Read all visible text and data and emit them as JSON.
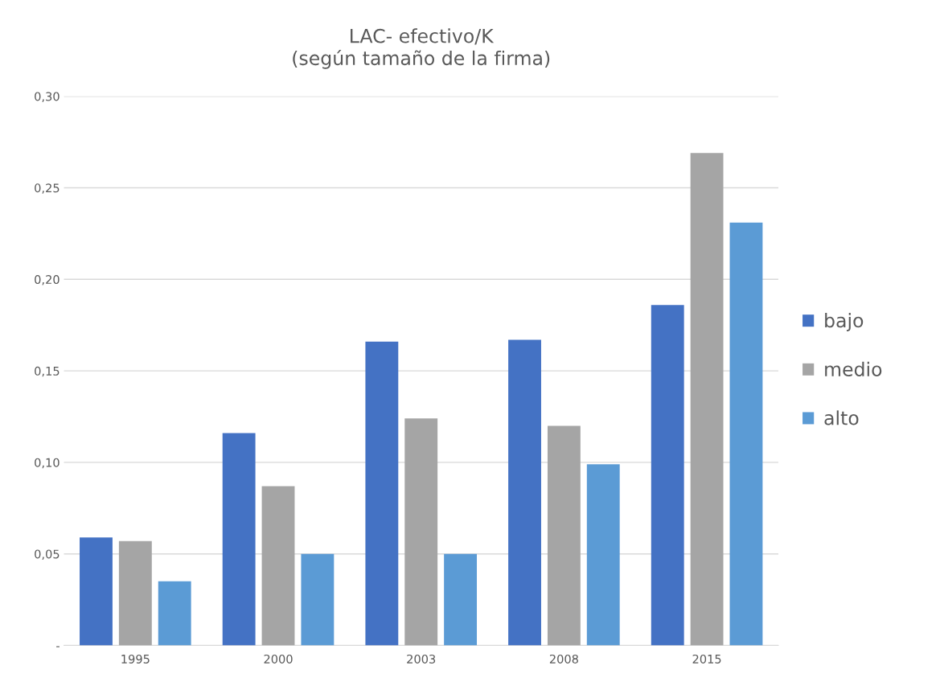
{
  "chart_data": {
    "type": "bar",
    "title": "LAC- efectivo/K\n(según tamaño de la firma)",
    "categories": [
      "1995",
      "2000",
      "2003",
      "2008",
      "2015"
    ],
    "series": [
      {
        "name": "bajo",
        "color": "#4472c4",
        "values": [
          0.059,
          0.116,
          0.166,
          0.167,
          0.186
        ]
      },
      {
        "name": "medio",
        "color": "#a5a5a5",
        "values": [
          0.057,
          0.087,
          0.124,
          0.12,
          0.269
        ]
      },
      {
        "name": "alto",
        "color": "#5b9bd5",
        "values": [
          0.035,
          0.05,
          0.05,
          0.099,
          0.231
        ]
      }
    ],
    "ylim": [
      0,
      0.3
    ],
    "yticks": [
      {
        "value": 0,
        "label": "-"
      },
      {
        "value": 0.05,
        "label": "0,05"
      },
      {
        "value": 0.1,
        "label": "0,10"
      },
      {
        "value": 0.15,
        "label": "0,15"
      },
      {
        "value": 0.2,
        "label": "0,20"
      },
      {
        "value": 0.25,
        "label": "0,25"
      },
      {
        "value": 0.3,
        "label": "0,30"
      }
    ],
    "grid": "y",
    "legend": "right"
  }
}
